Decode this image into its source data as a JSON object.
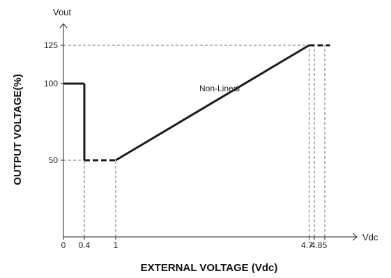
{
  "chart_data": {
    "type": "line",
    "title": "",
    "xlabel": "EXTERNAL VOLTAGE (Vdc)",
    "ylabel": "OUTPUT VOLTAGE(%)",
    "x_unit": "Vdc",
    "y_unit": "Vout",
    "xlim": [
      0,
      5.4
    ],
    "ylim": [
      0,
      140
    ],
    "x_ticks": [
      {
        "value": 0,
        "label": "0"
      },
      {
        "value": 0.4,
        "label": "0.4"
      },
      {
        "value": 1,
        "label": "1"
      },
      {
        "value": 4.7,
        "label": "4.7"
      },
      {
        "value": 4.8,
        "label": "4.8"
      },
      {
        "value": 5,
        "label": "5"
      }
    ],
    "y_ticks": [
      {
        "value": 50,
        "label": "50"
      },
      {
        "value": 100,
        "label": "100"
      },
      {
        "value": 125,
        "label": "125"
      }
    ],
    "grid": false,
    "segments": [
      {
        "style": "solid",
        "x": [
          0,
          0.4
        ],
        "y": [
          100,
          100
        ]
      },
      {
        "style": "solid",
        "x": [
          0.4,
          0.4
        ],
        "y": [
          100,
          50
        ]
      },
      {
        "style": "dashed",
        "x": [
          0.4,
          1
        ],
        "y": [
          50,
          50
        ]
      },
      {
        "style": "solid",
        "x": [
          1,
          4.7
        ],
        "y": [
          50,
          125
        ]
      },
      {
        "style": "dashed",
        "x": [
          4.7,
          5.1
        ],
        "y": [
          125,
          125
        ]
      }
    ],
    "guides": [
      {
        "x": [
          0,
          0.4
        ],
        "y": [
          50,
          50
        ]
      },
      {
        "x": [
          0,
          4.7
        ],
        "y": [
          125,
          125
        ]
      },
      {
        "x": [
          0.4,
          0.4
        ],
        "y": [
          0,
          50
        ]
      },
      {
        "x": [
          1,
          1
        ],
        "y": [
          0,
          50
        ]
      },
      {
        "x": [
          4.7,
          4.7
        ],
        "y": [
          0,
          125
        ]
      },
      {
        "x": [
          4.8,
          4.8
        ],
        "y": [
          0,
          125
        ]
      },
      {
        "x": [
          5,
          5
        ],
        "y": [
          0,
          125
        ]
      }
    ],
    "annotations": [
      {
        "text": "Non-Linear",
        "x": 2.6,
        "y": 95
      }
    ],
    "colors": {
      "line": "#1a1a1a",
      "guide": "#444444",
      "axis": "#222222"
    }
  }
}
